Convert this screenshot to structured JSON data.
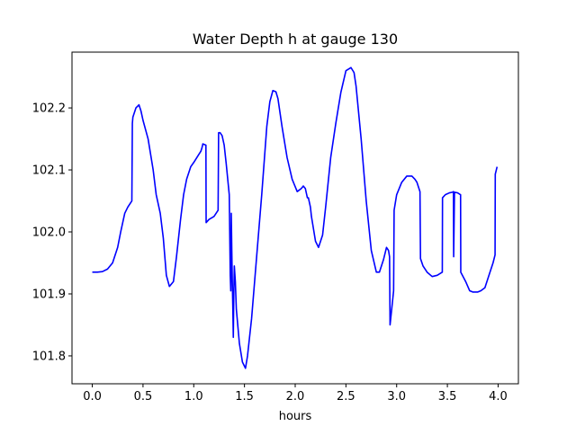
{
  "chart_data": {
    "type": "line",
    "title": "Water Depth h at gauge 130",
    "xlabel": "hours",
    "ylabel": "",
    "xlim": [
      -0.2,
      4.2
    ],
    "ylim": [
      101.755,
      102.29
    ],
    "xticks": [
      0.0,
      0.5,
      1.0,
      1.5,
      2.0,
      2.5,
      3.0,
      3.5,
      4.0
    ],
    "xtick_labels": [
      "0.0",
      "0.5",
      "1.0",
      "1.5",
      "2.0",
      "2.5",
      "3.0",
      "3.5",
      "4.0"
    ],
    "yticks": [
      101.8,
      101.9,
      102.0,
      102.1,
      102.2
    ],
    "ytick_labels": [
      "101.8",
      "101.9",
      "102.0",
      "102.1",
      "102.2"
    ],
    "grid": false,
    "series": [
      {
        "color": "#0000ff",
        "x": [
          0.0,
          0.05,
          0.1,
          0.15,
          0.2,
          0.25,
          0.28,
          0.32,
          0.35,
          0.39,
          0.395,
          0.4,
          0.43,
          0.46,
          0.48,
          0.5,
          0.55,
          0.6,
          0.63,
          0.67,
          0.7,
          0.73,
          0.76,
          0.8,
          0.83,
          0.87,
          0.9,
          0.93,
          0.97,
          1.0,
          1.05,
          1.07,
          1.08,
          1.09,
          1.12,
          1.122,
          1.15,
          1.2,
          1.24,
          1.245,
          1.26,
          1.28,
          1.3,
          1.32,
          1.35,
          1.36,
          1.365,
          1.37,
          1.375,
          1.38,
          1.385,
          1.39,
          1.395,
          1.4,
          1.41,
          1.42,
          1.45,
          1.48,
          1.51,
          1.53,
          1.57,
          1.62,
          1.67,
          1.72,
          1.75,
          1.78,
          1.81,
          1.83,
          1.87,
          1.92,
          1.97,
          2.02,
          2.06,
          2.08,
          2.1,
          2.12,
          2.13,
          2.15,
          2.16,
          2.2,
          2.23,
          2.27,
          2.3,
          2.35,
          2.4,
          2.45,
          2.5,
          2.55,
          2.58,
          2.6,
          2.65,
          2.7,
          2.75,
          2.8,
          2.83,
          2.87,
          2.9,
          2.92,
          2.93,
          2.935,
          2.97,
          2.975,
          3.0,
          3.05,
          3.1,
          3.15,
          3.18,
          3.2,
          3.23,
          3.235,
          3.26,
          3.3,
          3.35,
          3.4,
          3.45,
          3.452,
          3.48,
          3.52,
          3.55,
          3.56,
          3.562,
          3.57,
          3.6,
          3.63,
          3.632,
          3.68,
          3.72,
          3.75,
          3.8,
          3.83,
          3.87,
          3.91,
          3.95,
          3.97,
          3.972,
          3.99
        ],
        "y": [
          101.935,
          101.935,
          101.936,
          101.94,
          101.95,
          101.975,
          102.0,
          102.03,
          102.04,
          102.05,
          102.175,
          102.185,
          102.2,
          102.205,
          102.195,
          102.18,
          102.15,
          102.1,
          102.06,
          102.03,
          101.99,
          101.93,
          101.912,
          101.92,
          101.96,
          102.02,
          102.06,
          102.085,
          102.105,
          102.112,
          102.125,
          102.13,
          102.135,
          102.142,
          102.14,
          102.015,
          102.02,
          102.025,
          102.035,
          102.16,
          102.16,
          102.155,
          102.14,
          102.11,
          102.06,
          101.93,
          101.905,
          102.03,
          101.97,
          101.92,
          101.88,
          101.83,
          101.9,
          101.945,
          101.92,
          101.875,
          101.82,
          101.79,
          101.78,
          101.8,
          101.86,
          101.96,
          102.06,
          102.17,
          102.21,
          102.228,
          102.226,
          102.215,
          102.17,
          102.12,
          102.085,
          102.065,
          102.07,
          102.074,
          102.07,
          102.055,
          102.055,
          102.04,
          102.025,
          101.985,
          101.975,
          101.995,
          102.04,
          102.12,
          102.175,
          102.225,
          102.26,
          102.265,
          102.257,
          102.235,
          102.15,
          102.05,
          101.97,
          101.935,
          101.935,
          101.955,
          101.975,
          101.97,
          101.96,
          101.85,
          101.905,
          102.035,
          102.06,
          102.08,
          102.09,
          102.09,
          102.085,
          102.08,
          102.065,
          101.957,
          101.945,
          101.935,
          101.928,
          101.93,
          101.935,
          102.055,
          102.06,
          102.063,
          102.064,
          102.065,
          101.96,
          102.064,
          102.063,
          102.06,
          101.935,
          101.92,
          101.905,
          101.903,
          101.903,
          101.905,
          101.91,
          101.93,
          101.95,
          101.963,
          102.093,
          102.105
        ]
      }
    ]
  }
}
